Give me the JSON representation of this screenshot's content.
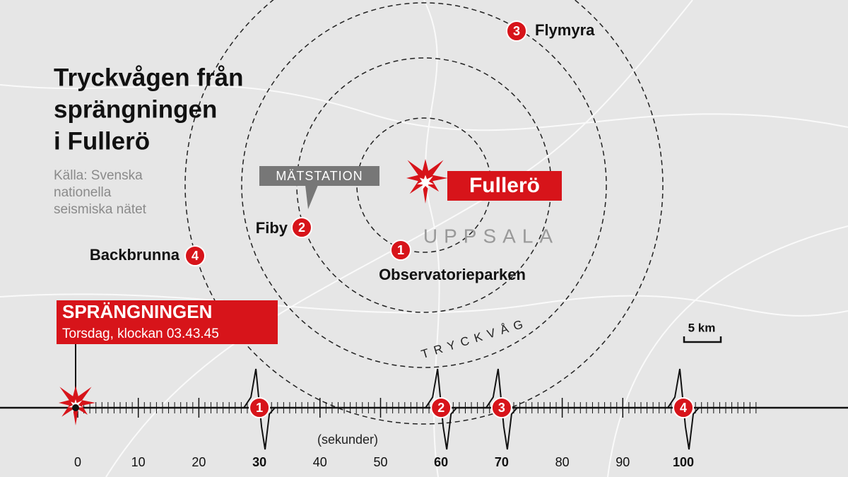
{
  "title": [
    "Tryckvågen från",
    "sprängningen",
    "i Fullerö"
  ],
  "source": [
    "Källa: Svenska",
    "nationella",
    "seismiska nätet"
  ],
  "callout": "MÄTSTATION",
  "epicenter": "Fullerö",
  "city": "UPPSALA",
  "wave_label": "TRYCKVÅG",
  "scale": "5 km",
  "stations": [
    {
      "number": 1,
      "name": "Observatorieparken"
    },
    {
      "number": 2,
      "name": "Fiby"
    },
    {
      "number": 3,
      "name": "Flymyra"
    },
    {
      "number": 4,
      "name": "Backbrunna"
    }
  ],
  "event": {
    "title": "SPRÄNGNINGEN",
    "subtitle": "Torsdag, klockan 03.43.45"
  },
  "timeline": {
    "unit": "(sekunder)",
    "ticks": [
      0,
      10,
      20,
      30,
      40,
      50,
      60,
      70,
      80,
      90,
      100
    ],
    "arrivals": [
      {
        "station": 1,
        "seconds": 30
      },
      {
        "station": 2,
        "seconds": 60
      },
      {
        "station": 3,
        "seconds": 70
      },
      {
        "station": 4,
        "seconds": 100
      }
    ]
  }
}
